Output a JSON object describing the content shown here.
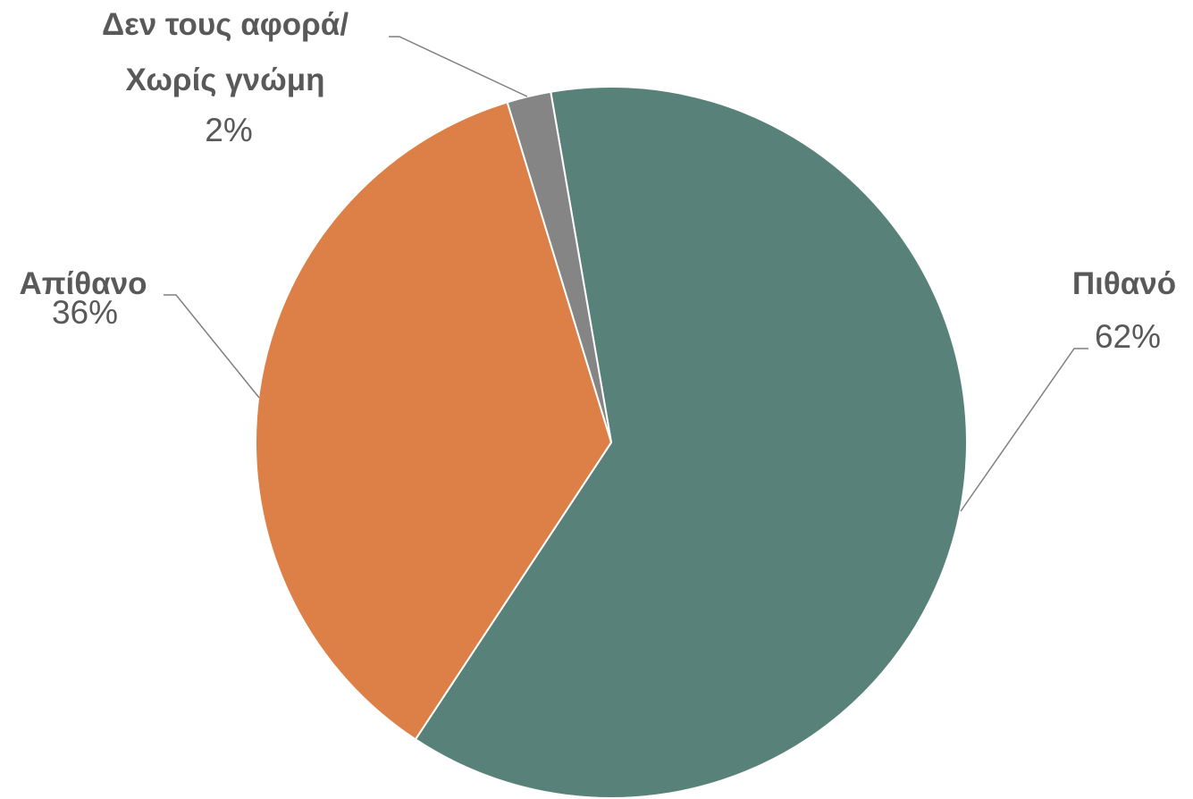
{
  "chart_data": {
    "type": "pie",
    "categories": [
      "Πιθανό",
      "Απίθανο",
      "Δεν τους αφορά/ Χωρίς γνώμη"
    ],
    "values": [
      62,
      36,
      2
    ],
    "value_labels": [
      "62%",
      "36%",
      "2%"
    ],
    "colors": [
      "#588279",
      "#dd8047",
      "#858585"
    ]
  }
}
